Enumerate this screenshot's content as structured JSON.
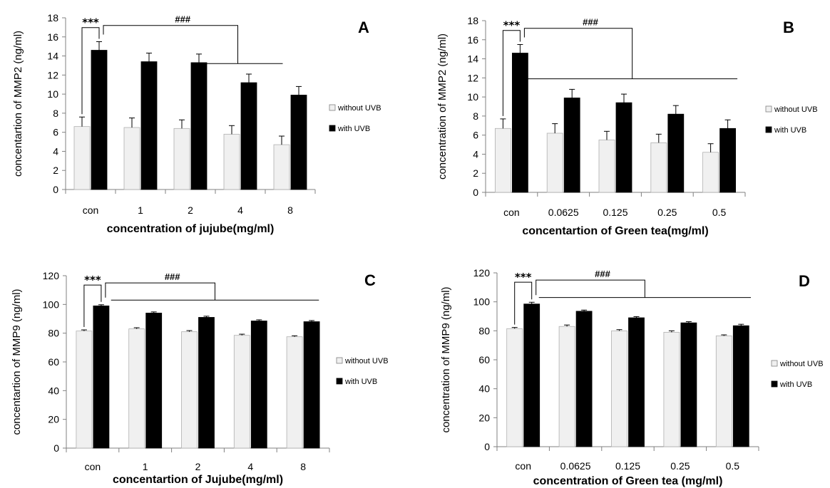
{
  "chart_data": [
    {
      "panel": "A",
      "type": "bar",
      "ylabel": "concentartion of MMP2 (ng/ml)",
      "xlabel": "concentration of jujube(mg/ml)",
      "categories": [
        "con",
        "1",
        "2",
        "4",
        "8"
      ],
      "ylim": [
        0,
        18
      ],
      "yticks": [
        0,
        2,
        4,
        6,
        8,
        10,
        12,
        14,
        16,
        18
      ],
      "series": [
        {
          "name": "without UVB",
          "color": "#f0f0f0",
          "values": [
            6.6,
            6.5,
            6.4,
            5.8,
            4.7
          ],
          "errors": [
            1.0,
            1.0,
            0.9,
            0.9,
            0.9
          ]
        },
        {
          "name": "with UVB",
          "color": "#000000",
          "values": [
            14.6,
            13.4,
            13.3,
            11.2,
            9.9
          ],
          "errors": [
            0.9,
            0.9,
            0.9,
            0.9,
            0.9
          ]
        }
      ],
      "annotations": {
        "star": "***",
        "hash": "###"
      },
      "bracket": {
        "line_y": 13.2,
        "top_y": 17.2,
        "from": 2.55,
        "to": 4.35
      }
    },
    {
      "panel": "B",
      "type": "bar",
      "ylabel": "concentration of MMP2 (ng/ml)",
      "xlabel": "concentartion of Green tea(mg/ml)",
      "categories": [
        "con",
        "0.0625",
        "0.125",
        "0.25",
        "0.5"
      ],
      "ylim": [
        0,
        18
      ],
      "yticks": [
        0,
        2,
        4,
        6,
        8,
        10,
        12,
        14,
        16,
        18
      ],
      "series": [
        {
          "name": "without UVB",
          "color": "#f0f0f0",
          "values": [
            6.7,
            6.2,
            5.5,
            5.2,
            4.2
          ],
          "errors": [
            1.0,
            1.0,
            0.9,
            0.9,
            0.9
          ]
        },
        {
          "name": "with UVB",
          "color": "#000000",
          "values": [
            14.6,
            9.9,
            9.4,
            8.2,
            6.7
          ],
          "errors": [
            0.9,
            0.9,
            0.9,
            0.9,
            0.9
          ]
        }
      ],
      "annotations": {
        "star": "***",
        "hash": "###"
      },
      "bracket": {
        "line_y": 11.9,
        "top_y": 17.2,
        "from": 0.8,
        "to": 4.85
      }
    },
    {
      "panel": "C",
      "type": "bar",
      "ylabel": "concentartion of MMP9 (ng/ml)",
      "xlabel": "concentartion of Jujube(mg/ml)",
      "categories": [
        "con",
        "1",
        "2",
        "4",
        "8"
      ],
      "ylim": [
        0,
        120
      ],
      "yticks": [
        0,
        20,
        40,
        60,
        80,
        100,
        120
      ],
      "series": [
        {
          "name": "without UVB",
          "color": "#f0f0f0",
          "values": [
            81.5,
            83,
            81,
            78.5,
            77.5
          ],
          "errors": [
            0.8,
            0.8,
            0.8,
            0.8,
            0.7
          ]
        },
        {
          "name": "with UVB",
          "color": "#000000",
          "values": [
            99,
            94,
            91,
            88.5,
            88
          ],
          "errors": [
            0.8,
            0.8,
            0.8,
            0.8,
            0.8
          ]
        }
      ],
      "annotations": {
        "star": "***",
        "hash": "###"
      },
      "bracket": {
        "line_y": 103,
        "top_y": 115,
        "from": 0.85,
        "to": 4.8
      }
    },
    {
      "panel": "D",
      "type": "bar",
      "ylabel": "concentration of MMP9 (ng/ml)",
      "xlabel": "concentration of Green tea (mg/ml)",
      "categories": [
        "con",
        "0.0625",
        "0.125",
        "0.25",
        "0.5"
      ],
      "ylim": [
        0,
        120
      ],
      "yticks": [
        0,
        20,
        40,
        60,
        80,
        100,
        120
      ],
      "series": [
        {
          "name": "without UVB",
          "color": "#f0f0f0",
          "values": [
            81.5,
            83,
            80,
            79,
            76.5
          ],
          "errors": [
            0.8,
            1.0,
            0.8,
            1.0,
            0.7
          ]
        },
        {
          "name": "with UVB",
          "color": "#000000",
          "values": [
            98.5,
            93.5,
            89,
            85.5,
            83.5
          ],
          "errors": [
            1.2,
            0.8,
            0.8,
            0.8,
            1.0
          ]
        }
      ],
      "annotations": {
        "star": "***",
        "hash": "###"
      },
      "bracket": {
        "line_y": 103,
        "top_y": 115,
        "from": 0.8,
        "to": 4.85
      }
    }
  ]
}
